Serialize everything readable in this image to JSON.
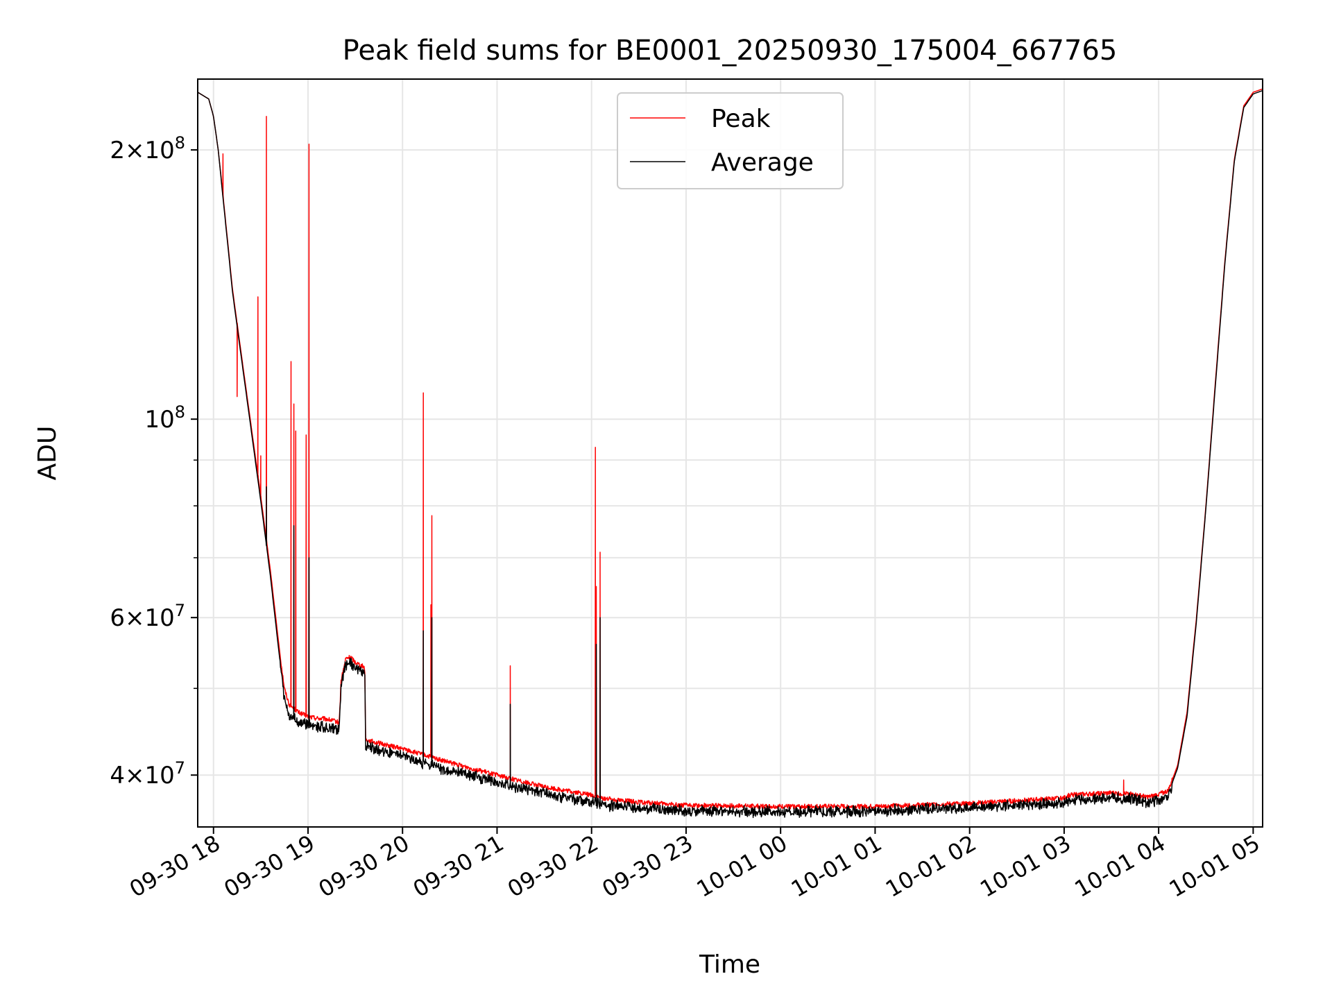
{
  "chart_data": {
    "type": "line",
    "title": "Peak field sums for BE0001_20250930_175004_667765",
    "xlabel": "Time",
    "ylabel": "ADU",
    "yscale": "log",
    "ylim": [
      35000000,
      240000000
    ],
    "xlim_hours_since_0930_1800": [
      -0.167,
      11.1
    ],
    "grid": true,
    "legend_position": "top-center",
    "x_ticks": [
      {
        "label": "09-30 18",
        "h": 0
      },
      {
        "label": "09-30 19",
        "h": 1
      },
      {
        "label": "09-30 20",
        "h": 2
      },
      {
        "label": "09-30 21",
        "h": 3
      },
      {
        "label": "09-30 22",
        "h": 4
      },
      {
        "label": "09-30 23",
        "h": 5
      },
      {
        "label": "10-01 00",
        "h": 6
      },
      {
        "label": "10-01 01",
        "h": 7
      },
      {
        "label": "10-01 02",
        "h": 8
      },
      {
        "label": "10-01 03",
        "h": 9
      },
      {
        "label": "10-01 04",
        "h": 10
      },
      {
        "label": "10-01 05",
        "h": 11
      }
    ],
    "y_ticks": [
      {
        "base": "4",
        "exp": "7",
        "value": 40000000,
        "mantissa": true
      },
      {
        "base": "6",
        "exp": "7",
        "value": 60000000,
        "mantissa": true
      },
      {
        "base": "10",
        "exp": "8",
        "value": 100000000,
        "mantissa": false
      },
      {
        "base": "2",
        "exp": "8",
        "value": 200000000,
        "mantissa": true
      }
    ],
    "y_minor_ticks": [
      50000000,
      70000000,
      80000000,
      90000000
    ],
    "series": [
      {
        "name": "Peak",
        "color": "#ff0000",
        "baseline_points": [
          [
            -0.167,
            232000000
          ],
          [
            -0.05,
            228000000
          ],
          [
            0.0,
            218000000
          ],
          [
            0.05,
            200000000
          ],
          [
            0.1,
            178000000
          ],
          [
            0.15,
            158000000
          ],
          [
            0.2,
            140000000
          ],
          [
            0.3,
            117000000
          ],
          [
            0.4,
            98000000
          ],
          [
            0.5,
            82000000
          ],
          [
            0.6,
            68000000
          ],
          [
            0.7,
            55000000
          ],
          [
            0.75,
            50000000
          ],
          [
            0.8,
            48000000
          ],
          [
            0.9,
            47000000
          ],
          [
            1.0,
            46500000
          ],
          [
            1.1,
            46300000
          ],
          [
            1.2,
            46200000
          ],
          [
            1.33,
            45800000
          ],
          [
            1.35,
            51000000
          ],
          [
            1.4,
            54000000
          ],
          [
            1.45,
            54200000
          ],
          [
            1.5,
            53500000
          ],
          [
            1.6,
            52800000
          ],
          [
            1.61,
            43800000
          ],
          [
            1.8,
            43300000
          ],
          [
            2.0,
            42800000
          ],
          [
            2.2,
            42200000
          ],
          [
            2.5,
            41300000
          ],
          [
            3.0,
            40000000
          ],
          [
            3.5,
            38800000
          ],
          [
            4.0,
            38000000
          ],
          [
            4.1,
            37700000
          ],
          [
            4.5,
            37300000
          ],
          [
            5.0,
            37000000
          ],
          [
            6.0,
            36900000
          ],
          [
            7.0,
            36900000
          ],
          [
            8.0,
            37200000
          ],
          [
            9.0,
            37700000
          ],
          [
            9.05,
            38000000
          ],
          [
            9.5,
            38200000
          ],
          [
            9.7,
            38100000
          ],
          [
            9.9,
            37800000
          ],
          [
            10.1,
            38400000
          ],
          [
            10.2,
            41000000
          ],
          [
            10.3,
            47000000
          ],
          [
            10.4,
            60000000
          ],
          [
            10.5,
            80000000
          ],
          [
            10.6,
            110000000
          ],
          [
            10.7,
            150000000
          ],
          [
            10.8,
            195000000
          ],
          [
            10.9,
            224000000
          ],
          [
            11.0,
            232000000
          ],
          [
            11.1,
            234000000
          ]
        ],
        "spikes": [
          [
            0.1,
            198000000
          ],
          [
            0.25,
            106000000
          ],
          [
            0.47,
            137000000
          ],
          [
            0.5,
            91000000
          ],
          [
            0.56,
            218000000
          ],
          [
            0.82,
            116000000
          ],
          [
            0.85,
            104000000
          ],
          [
            0.87,
            97000000
          ],
          [
            0.98,
            96000000
          ],
          [
            1.01,
            203000000
          ],
          [
            2.22,
            107000000
          ],
          [
            2.3,
            62000000
          ],
          [
            2.31,
            78000000
          ],
          [
            3.14,
            53000000
          ],
          [
            4.04,
            93000000
          ],
          [
            4.05,
            65000000
          ],
          [
            4.09,
            71000000
          ],
          [
            9.63,
            39500000
          ]
        ]
      },
      {
        "name": "Average",
        "color": "#000000",
        "baseline_points": [
          [
            -0.167,
            232000000
          ],
          [
            -0.05,
            228000000
          ],
          [
            0.0,
            218000000
          ],
          [
            0.05,
            200000000
          ],
          [
            0.1,
            177000000
          ],
          [
            0.15,
            157000000
          ],
          [
            0.2,
            139000000
          ],
          [
            0.3,
            116000000
          ],
          [
            0.4,
            97000000
          ],
          [
            0.5,
            81000000
          ],
          [
            0.6,
            67000000
          ],
          [
            0.7,
            54000000
          ],
          [
            0.75,
            49000000
          ],
          [
            0.8,
            47000000
          ],
          [
            0.9,
            46200000
          ],
          [
            1.0,
            45800000
          ],
          [
            1.1,
            45600000
          ],
          [
            1.2,
            45500000
          ],
          [
            1.33,
            45200000
          ],
          [
            1.35,
            50500000
          ],
          [
            1.4,
            53500000
          ],
          [
            1.45,
            53700000
          ],
          [
            1.5,
            53000000
          ],
          [
            1.6,
            52300000
          ],
          [
            1.61,
            43300000
          ],
          [
            1.8,
            42800000
          ],
          [
            2.0,
            42200000
          ],
          [
            2.2,
            41600000
          ],
          [
            2.5,
            40700000
          ],
          [
            3.0,
            39500000
          ],
          [
            3.5,
            38400000
          ],
          [
            4.0,
            37500000
          ],
          [
            4.1,
            37300000
          ],
          [
            4.5,
            37000000
          ],
          [
            5.0,
            36700000
          ],
          [
            6.0,
            36600000
          ],
          [
            7.0,
            36700000
          ],
          [
            8.0,
            37000000
          ],
          [
            9.0,
            37500000
          ],
          [
            9.05,
            37700000
          ],
          [
            9.5,
            37900000
          ],
          [
            9.7,
            37900000
          ],
          [
            9.9,
            37500000
          ],
          [
            10.1,
            38100000
          ],
          [
            10.2,
            40700000
          ],
          [
            10.3,
            46500000
          ],
          [
            10.4,
            59500000
          ],
          [
            10.5,
            79500000
          ],
          [
            10.6,
            109000000
          ],
          [
            10.7,
            149000000
          ],
          [
            10.8,
            194000000
          ],
          [
            10.9,
            223000000
          ],
          [
            11.0,
            231000000
          ],
          [
            11.1,
            233000000
          ]
        ],
        "spikes": [
          [
            0.56,
            84000000
          ],
          [
            0.85,
            76000000
          ],
          [
            1.01,
            70000000
          ],
          [
            2.22,
            58000000
          ],
          [
            2.31,
            60000000
          ],
          [
            3.14,
            48000000
          ],
          [
            4.05,
            56000000
          ],
          [
            4.09,
            60000000
          ]
        ]
      }
    ]
  }
}
